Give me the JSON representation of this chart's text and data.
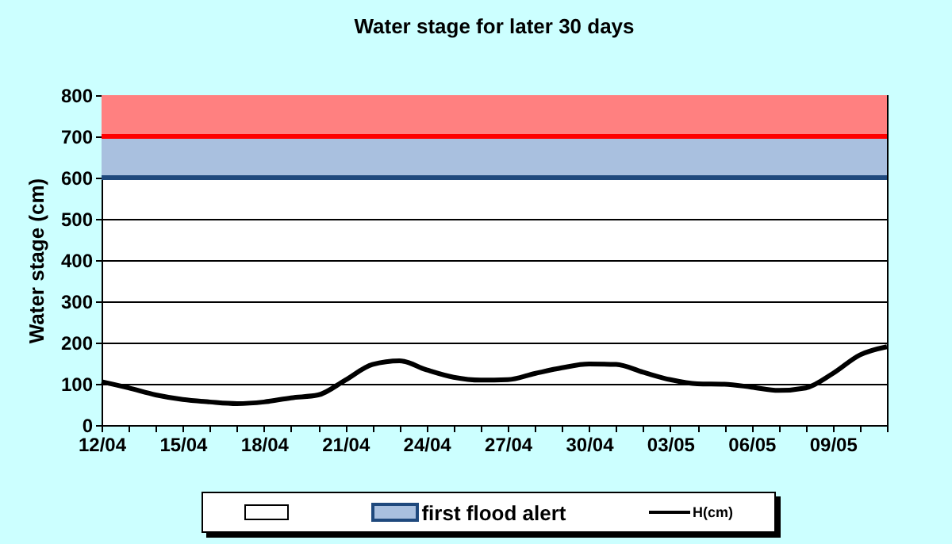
{
  "chart_data": {
    "type": "line",
    "title": "Water stage for later 30 days",
    "ylabel": "Water stage (cm)",
    "x": [
      "--04-12",
      "--04-13",
      "--04-14",
      "--04-15",
      "--04-16",
      "--04-17",
      "--04-18",
      "--04-19",
      "--04-20",
      "--04-21",
      "--04-22",
      "--04-23",
      "--04-24",
      "--04-25",
      "--04-26",
      "--04-27",
      "--04-28",
      "--04-29",
      "--04-30",
      "--05-01",
      "--05-02",
      "--05-03",
      "--05-04",
      "--05-05",
      "--05-06",
      "--05-07",
      "--05-08",
      "--05-09",
      "--05-10",
      "--05-11"
    ],
    "series": [
      {
        "name": "H(cm)",
        "color": "#000000",
        "values": [
          105,
          90,
          73,
          62,
          56,
          52,
          56,
          66,
          73,
          109,
          147,
          156,
          134,
          116,
          109,
          110,
          125,
          139,
          148,
          147,
          128,
          110,
          100,
          99,
          92,
          84,
          90,
          125,
          170,
          190
        ]
      }
    ],
    "xlim": [
      "--04-12",
      "--05-11"
    ],
    "xticks": [
      {
        "value": "--04-12",
        "label": "12/04"
      },
      {
        "value": "--04-13",
        "label": null
      },
      {
        "value": "--04-14",
        "label": null
      },
      {
        "value": "--04-15",
        "label": "15/04"
      },
      {
        "value": "--04-16",
        "label": null
      },
      {
        "value": "--04-17",
        "label": null
      },
      {
        "value": "--04-18",
        "label": "18/04"
      },
      {
        "value": "--04-19",
        "label": null
      },
      {
        "value": "--04-20",
        "label": null
      },
      {
        "value": "--04-21",
        "label": "21/04"
      },
      {
        "value": "--04-22",
        "label": null
      },
      {
        "value": "--04-23",
        "label": null
      },
      {
        "value": "--04-24",
        "label": "24/04"
      },
      {
        "value": "--04-25",
        "label": null
      },
      {
        "value": "--04-26",
        "label": null
      },
      {
        "value": "--04-27",
        "label": "27/04"
      },
      {
        "value": "--04-28",
        "label": null
      },
      {
        "value": "--04-29",
        "label": null
      },
      {
        "value": "--04-30",
        "label": "30/04"
      },
      {
        "value": "--05-01",
        "label": null
      },
      {
        "value": "--05-02",
        "label": null
      },
      {
        "value": "--05-03",
        "label": "03/05"
      },
      {
        "value": "--05-04",
        "label": null
      },
      {
        "value": "--05-05",
        "label": null
      },
      {
        "value": "--05-06",
        "label": "06/05"
      },
      {
        "value": "--05-07",
        "label": null
      },
      {
        "value": "--05-08",
        "label": null
      },
      {
        "value": "--05-09",
        "label": "09/05"
      },
      {
        "value": "--05-10",
        "label": null
      },
      {
        "value": "--05-11",
        "label": null
      }
    ],
    "ylim": [
      0,
      800
    ],
    "yticks": [
      0,
      100,
      200,
      300,
      400,
      500,
      600,
      700,
      800
    ],
    "bands": [
      {
        "axis": "y",
        "from": 600,
        "to": 700,
        "label": "first flood alert",
        "color": "#a9c0df"
      },
      {
        "axis": "y",
        "from": 700,
        "to": 800,
        "color": "#ff8080"
      }
    ],
    "ref_lines": [
      {
        "axis": "y",
        "value": 600,
        "color": "#1f497d"
      },
      {
        "axis": "y",
        "value": 700,
        "color": "#ff0000"
      }
    ],
    "grid": "y",
    "legend": "bottom",
    "marker": "none",
    "line_style": "solid"
  }
}
